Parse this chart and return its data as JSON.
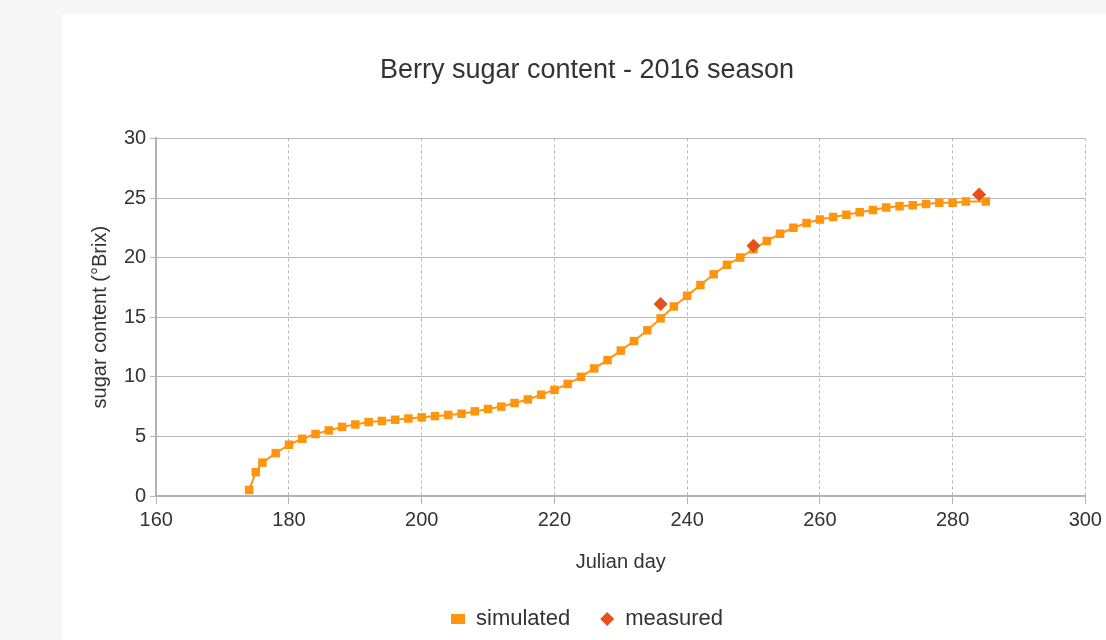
{
  "chart_data": {
    "type": "scatter",
    "title": "Berry sugar content - 2016 season",
    "xlabel": "Julian day",
    "ylabel": "sugar content (°Brix)",
    "xlim": [
      160,
      300
    ],
    "xticks": [
      160,
      180,
      200,
      220,
      240,
      260,
      280,
      300
    ],
    "ylim": [
      0,
      30
    ],
    "yticks": [
      0,
      5,
      10,
      15,
      20,
      25,
      30
    ],
    "grid": true,
    "legend": "bottom",
    "series": [
      {
        "name": "simulated",
        "type": "line",
        "marker": "square",
        "line_style": "solid",
        "color": "#ff950e",
        "x": [
          174,
          175,
          176,
          178,
          180,
          182,
          184,
          186,
          188,
          190,
          192,
          194,
          196,
          198,
          200,
          202,
          204,
          206,
          208,
          210,
          212,
          214,
          216,
          218,
          220,
          222,
          224,
          226,
          228,
          230,
          232,
          234,
          236,
          238,
          240,
          242,
          244,
          246,
          248,
          250,
          252,
          254,
          256,
          258,
          260,
          262,
          264,
          266,
          268,
          270,
          272,
          274,
          276,
          278,
          280,
          282,
          285
        ],
        "values": [
          0.5,
          2,
          2.8,
          3.6,
          4.3,
          4.8,
          5.2,
          5.5,
          5.8,
          6.0,
          6.2,
          6.3,
          6.4,
          6.5,
          6.6,
          6.7,
          6.8,
          6.9,
          7.1,
          7.3,
          7.5,
          7.8,
          8.1,
          8.5,
          8.9,
          9.4,
          10.0,
          10.7,
          11.4,
          12.2,
          13.0,
          13.9,
          14.9,
          15.9,
          16.8,
          17.7,
          18.6,
          19.4,
          20.0,
          20.7,
          21.4,
          22.0,
          22.5,
          22.9,
          23.2,
          23.4,
          23.6,
          23.8,
          24.0,
          24.2,
          24.3,
          24.4,
          24.5,
          24.6,
          24.6,
          24.7,
          24.7
        ]
      },
      {
        "name": "measured",
        "marker": "diamond",
        "color": "#e8501a",
        "x": [
          236,
          250,
          284
        ],
        "values": [
          16.1,
          21.0,
          25.3
        ]
      }
    ]
  }
}
